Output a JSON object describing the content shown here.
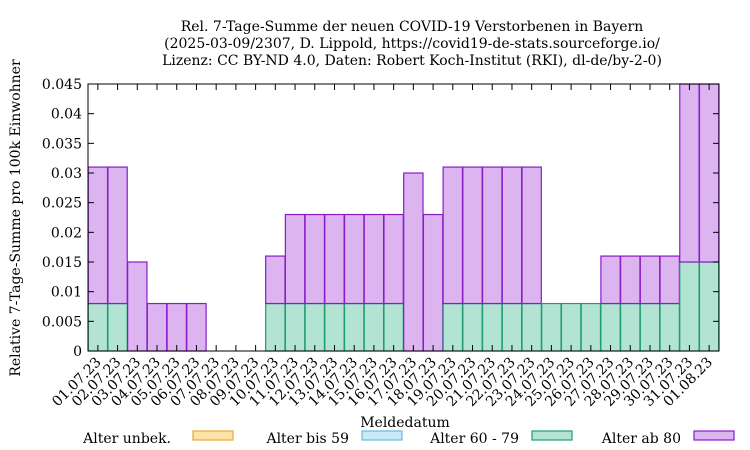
{
  "chart_data": {
    "type": "bar",
    "stacked": true,
    "title": [
      "Rel. 7-Tage-Summe der neuen COVID-19 Verstorbenen in Bayern",
      "(2025-03-09/2307, D. Lippold, https://covid19-de-stats.sourceforge.io/",
      "Lizenz: CC BY-ND 4.0, Daten: Robert Koch-Institut (RKI), dl-de/by-2-0)"
    ],
    "xlabel": "Meldedatum",
    "ylabel": "Relative 7-Tage-Summe pro 100k Einwohner",
    "ylim": [
      0,
      0.045
    ],
    "yticks": [
      "0",
      "0.005",
      "0.01",
      "0.015",
      "0.02",
      "0.025",
      "0.03",
      "0.035",
      "0.04",
      "0.045"
    ],
    "grid": false,
    "legend_position": "bottom",
    "categories": [
      "01.07.23",
      "02.07.23",
      "03.07.23",
      "04.07.23",
      "05.07.23",
      "06.07.23",
      "07.07.23",
      "08.07.23",
      "09.07.23",
      "10.07.23",
      "11.07.23",
      "12.07.23",
      "13.07.23",
      "14.07.23",
      "15.07.23",
      "16.07.23",
      "17.07.23",
      "18.07.23",
      "19.07.23",
      "20.07.23",
      "21.07.23",
      "22.07.23",
      "23.07.23",
      "24.07.23",
      "25.07.23",
      "26.07.23",
      "27.07.23",
      "28.07.23",
      "29.07.23",
      "30.07.23",
      "31.07.23",
      "01.08.23"
    ],
    "series": [
      {
        "name": "Alter unbek.",
        "fill": "#fde3a7",
        "stroke": "#e8a838",
        "values": [
          0,
          0,
          0,
          0,
          0,
          0,
          0,
          0,
          0,
          0,
          0,
          0,
          0,
          0,
          0,
          0,
          0,
          0,
          0,
          0,
          0,
          0,
          0,
          0,
          0,
          0,
          0,
          0,
          0,
          0,
          0,
          0
        ]
      },
      {
        "name": "Alter bis 59",
        "fill": "#c9e8f8",
        "stroke": "#6bb8e0",
        "values": [
          0,
          0,
          0,
          0,
          0,
          0,
          0,
          0,
          0,
          0,
          0,
          0,
          0,
          0,
          0,
          0,
          0,
          0,
          0,
          0,
          0,
          0,
          0,
          0,
          0,
          0,
          0,
          0,
          0,
          0,
          0,
          0
        ]
      },
      {
        "name": "Alter 60 - 79",
        "fill": "#b3e3d3",
        "stroke": "#1e9e6e",
        "values": [
          0.008,
          0.008,
          0,
          0,
          0,
          0,
          0,
          0,
          0,
          0.008,
          0.008,
          0.008,
          0.008,
          0.008,
          0.008,
          0.008,
          0,
          0,
          0.008,
          0.008,
          0.008,
          0.008,
          0.008,
          0.008,
          0.008,
          0.008,
          0.008,
          0.008,
          0.008,
          0.008,
          0.015,
          0.015
        ]
      },
      {
        "name": "Alter ab 80",
        "fill": "#dcb4f0",
        "stroke": "#8a1cc8",
        "values": [
          0.023,
          0.023,
          0.015,
          0.008,
          0.008,
          0.008,
          0,
          0,
          0,
          0.008,
          0.015,
          0.015,
          0.015,
          0.015,
          0.015,
          0.015,
          0.03,
          0.023,
          0.023,
          0.023,
          0.023,
          0.023,
          0.023,
          0,
          0,
          0,
          0.008,
          0.008,
          0.008,
          0.008,
          0.03,
          0.03
        ]
      }
    ]
  }
}
